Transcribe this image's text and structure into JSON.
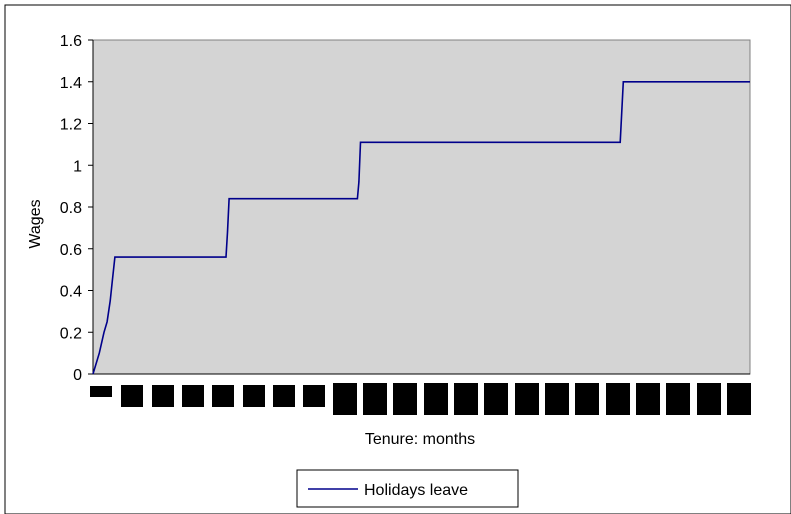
{
  "chart_data": {
    "type": "line",
    "title": "",
    "xlabel": "Tenure: months",
    "ylabel": "Wages",
    "ylim": [
      0,
      1.6
    ],
    "yticks": [
      "0",
      "0.2",
      "0.4",
      "0.6",
      "0.8",
      "1",
      "1.2",
      "1.4",
      "1.6"
    ],
    "x_range": [
      0,
      21
    ],
    "grid": false,
    "legend_position": "bottom",
    "colors": {
      "plot_background": "#d4d4d4",
      "series": "#00008b"
    },
    "series": [
      {
        "name": "Holidays leave",
        "points": [
          [
            0,
            0
          ],
          [
            0.2,
            0.1
          ],
          [
            0.35,
            0.2
          ],
          [
            0.45,
            0.25
          ],
          [
            0.55,
            0.35
          ],
          [
            0.62,
            0.45
          ],
          [
            0.7,
            0.56
          ],
          [
            4.25,
            0.56
          ],
          [
            4.3,
            0.68
          ],
          [
            4.35,
            0.84
          ],
          [
            8.45,
            0.84
          ],
          [
            8.5,
            0.92
          ],
          [
            8.55,
            1.11
          ],
          [
            16.85,
            1.11
          ],
          [
            16.9,
            1.25
          ],
          [
            16.95,
            1.4
          ],
          [
            21,
            1.4
          ]
        ]
      }
    ]
  }
}
